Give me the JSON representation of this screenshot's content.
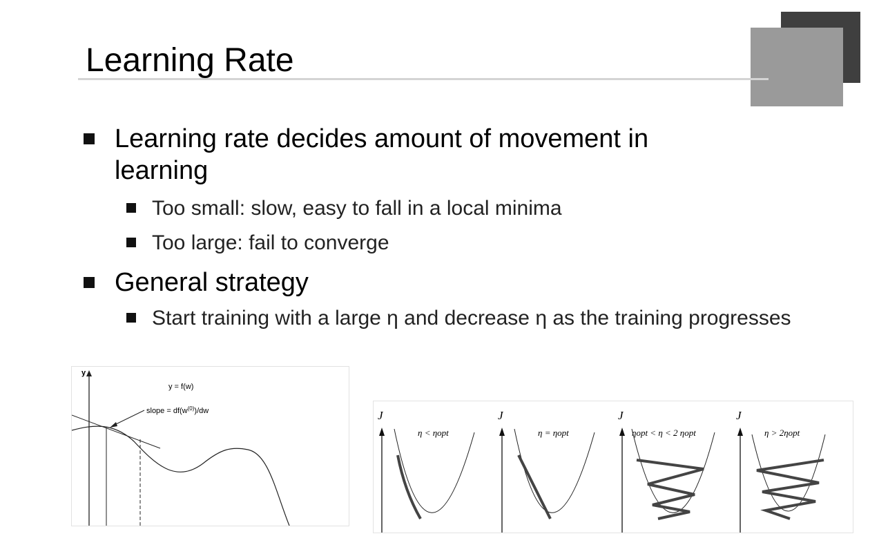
{
  "slide": {
    "title": "Learning Rate",
    "bullets": [
      {
        "text": "Learning rate decides amount of movement in learning",
        "sub": [
          "Too small: slow, easy to fall in a local minima",
          "Too large: fail to converge"
        ]
      },
      {
        "text": "General strategy",
        "sub": [
          "Start training with a large η and decrease η as the training progresses"
        ]
      }
    ]
  },
  "figure_left": {
    "y_axis_label": "y",
    "function_label": "y = f(w)",
    "slope_label": "slope = df(w(0))/dw",
    "slope_prefix": "slope = df(w",
    "slope_superscript": "(0)",
    "slope_suffix": ")/dw"
  },
  "figure_right": {
    "panels": [
      {
        "axis_label": "J",
        "condition": "η < ηopt"
      },
      {
        "axis_label": "J",
        "condition": "η = ηopt"
      },
      {
        "axis_label": "J",
        "condition": "ηopt < η < 2 ηopt"
      },
      {
        "axis_label": "J",
        "condition": "η > 2ηopt"
      }
    ]
  }
}
